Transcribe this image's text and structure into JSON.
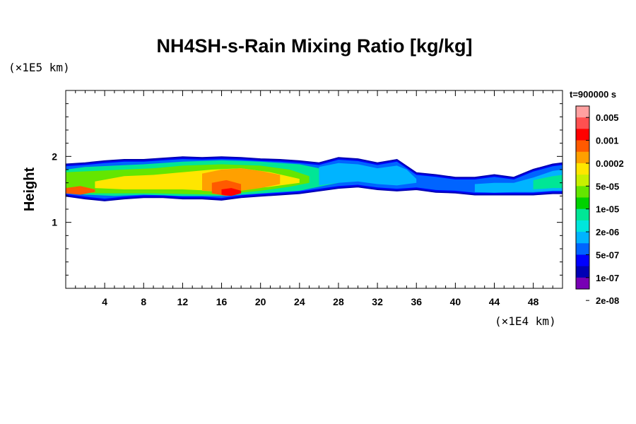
{
  "chart_data": {
    "type": "heatmap",
    "title": "NH4SH-s-Rain Mixing Ratio [kg/kg]",
    "xlabel": "",
    "ylabel": "Height",
    "x_unit": "(×1E4 km)",
    "y_unit": "(×1E5 km)",
    "xlim": [
      0,
      51
    ],
    "ylim": [
      0,
      3
    ],
    "x_ticks": [
      4,
      8,
      12,
      16,
      20,
      24,
      28,
      32,
      36,
      40,
      44,
      48
    ],
    "y_ticks": [
      1,
      2
    ],
    "time_label": "t=900000 s",
    "colorbar": {
      "labels": [
        "0.005",
        "0.001",
        "0.0002",
        "5e-05",
        "1e-05",
        "2e-06",
        "5e-07",
        "1e-07",
        "2e-08"
      ],
      "colors": [
        "#ffa0a0",
        "#ff5050",
        "#ff0000",
        "#ff5a00",
        "#ffa000",
        "#ffe600",
        "#c8f000",
        "#64e600",
        "#00d200",
        "#00e696",
        "#00e6dc",
        "#00b4ff",
        "#0064ff",
        "#0000ff",
        "#0000b4",
        "#7800b4"
      ]
    },
    "band": {
      "x": [
        0,
        2,
        4,
        6,
        8,
        10,
        12,
        14,
        16,
        18,
        20,
        22,
        24,
        26,
        28,
        30,
        32,
        34,
        36,
        38,
        40,
        42,
        44,
        46,
        48,
        50,
        51
      ],
      "top": [
        1.88,
        1.9,
        1.93,
        1.95,
        1.95,
        1.97,
        1.99,
        1.98,
        1.99,
        1.98,
        1.96,
        1.95,
        1.93,
        1.9,
        1.98,
        1.96,
        1.9,
        1.95,
        1.75,
        1.72,
        1.68,
        1.68,
        1.72,
        1.68,
        1.8,
        1.88,
        1.9
      ],
      "bottom": [
        1.4,
        1.36,
        1.33,
        1.36,
        1.38,
        1.38,
        1.36,
        1.36,
        1.34,
        1.38,
        1.4,
        1.42,
        1.44,
        1.48,
        1.52,
        1.54,
        1.5,
        1.48,
        1.5,
        1.46,
        1.45,
        1.42,
        1.42,
        1.42,
        1.42,
        1.44,
        1.44
      ]
    },
    "regions": [
      {
        "level": 9,
        "x": [
          0,
          2,
          5,
          8,
          12,
          16,
          20,
          24,
          26,
          28
        ],
        "top": [
          1.8,
          1.84,
          1.86,
          1.88,
          1.92,
          1.94,
          1.92,
          1.88,
          1.82,
          1.72
        ],
        "bottom": [
          1.46,
          1.42,
          1.4,
          1.42,
          1.4,
          1.4,
          1.44,
          1.48,
          1.54,
          1.6
        ]
      },
      {
        "level": 7,
        "x": [
          0,
          3,
          6,
          9,
          12,
          16,
          20,
          23,
          25
        ],
        "top": [
          1.76,
          1.78,
          1.8,
          1.82,
          1.86,
          1.88,
          1.86,
          1.8,
          1.7
        ],
        "bottom": [
          1.48,
          1.44,
          1.44,
          1.44,
          1.43,
          1.42,
          1.48,
          1.54,
          1.6
        ]
      },
      {
        "level": 5,
        "x": [
          3,
          6,
          9,
          12,
          15,
          18,
          21,
          24
        ],
        "top": [
          1.62,
          1.7,
          1.72,
          1.76,
          1.8,
          1.82,
          1.76,
          1.66
        ],
        "bottom": [
          1.52,
          1.5,
          1.5,
          1.5,
          1.48,
          1.5,
          1.54,
          1.6
        ]
      },
      {
        "level": 4,
        "x": [
          14,
          16,
          18,
          20,
          22
        ],
        "top": [
          1.74,
          1.8,
          1.82,
          1.78,
          1.72
        ],
        "bottom": [
          1.48,
          1.46,
          1.48,
          1.52,
          1.58
        ]
      },
      {
        "level": 3,
        "x": [
          15,
          16.5,
          18
        ],
        "top": [
          1.6,
          1.64,
          1.58
        ],
        "bottom": [
          1.44,
          1.4,
          1.44
        ]
      },
      {
        "level": 11,
        "x": [
          26,
          28,
          30,
          32,
          34,
          35,
          36
        ],
        "top": [
          1.84,
          1.9,
          1.88,
          1.82,
          1.86,
          1.8,
          1.66
        ],
        "bottom": [
          1.56,
          1.6,
          1.62,
          1.58,
          1.56,
          1.58,
          1.6
        ]
      },
      {
        "level": 11,
        "x": [
          42,
          44,
          46,
          48,
          50,
          51
        ],
        "top": [
          1.58,
          1.6,
          1.6,
          1.68,
          1.78,
          1.8
        ],
        "bottom": [
          1.46,
          1.45,
          1.46,
          1.46,
          1.48,
          1.48
        ]
      },
      {
        "level": 9,
        "x": [
          48,
          50,
          51
        ],
        "top": [
          1.64,
          1.7,
          1.72
        ],
        "bottom": [
          1.5,
          1.52,
          1.52
        ]
      },
      {
        "level": 3,
        "x": [
          0,
          1.5,
          3
        ],
        "top": [
          1.52,
          1.55,
          1.5
        ],
        "bottom": [
          1.44,
          1.42,
          1.46
        ]
      },
      {
        "level": 2,
        "x": [
          16,
          17,
          18
        ],
        "top": [
          1.5,
          1.52,
          1.48
        ],
        "bottom": [
          1.42,
          1.4,
          1.44
        ]
      }
    ]
  }
}
